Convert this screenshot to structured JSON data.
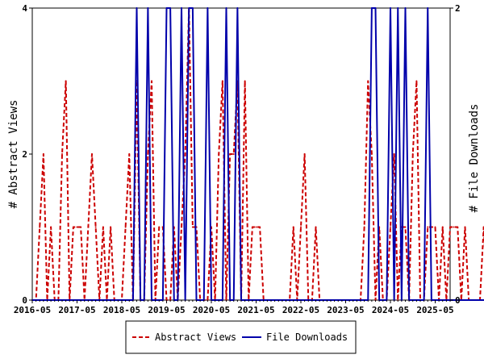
{
  "chart_data": {
    "type": "line",
    "y_left_label": "# Abstract Views",
    "y_right_label": "# File Downloads",
    "y_left_range": [
      0,
      4
    ],
    "y_right_range": [
      0,
      2
    ],
    "y_left_ticks": [
      0,
      2,
      4
    ],
    "y_right_ticks": [
      0,
      2
    ],
    "x_range": [
      "2016-05",
      "2025-09"
    ],
    "x_tick_labels": [
      "2016-05",
      "2017-05",
      "2018-05",
      "2019-05",
      "2020-05",
      "2021-05",
      "2022-05",
      "2023-05",
      "2024-05",
      "2025-05"
    ],
    "grid": false,
    "legend_position": "bottom",
    "series": [
      {
        "name": "Abstract Views",
        "axis": "left",
        "color": "#cc0000",
        "style": "dashed",
        "values": [
          0,
          0,
          1,
          2,
          0,
          1,
          0,
          0,
          2,
          3,
          0,
          1,
          1,
          1,
          0,
          1,
          2,
          1,
          0,
          1,
          0,
          1,
          0,
          0,
          0,
          1,
          2,
          0,
          3,
          0,
          0,
          2,
          3,
          0,
          1,
          1,
          0,
          0,
          1,
          0,
          1,
          2,
          4,
          1,
          1,
          0,
          0,
          0,
          1,
          0,
          2,
          3,
          0,
          2,
          2,
          3,
          0,
          3,
          0,
          1,
          1,
          1,
          0,
          0,
          0,
          0,
          0,
          0,
          0,
          0,
          1,
          0,
          1,
          2,
          0,
          0,
          1,
          0,
          0,
          0,
          0,
          0,
          0,
          0,
          0,
          0,
          0,
          0,
          0,
          1,
          3,
          2,
          0,
          1,
          0,
          0,
          1,
          2,
          0,
          1,
          1,
          0,
          2,
          3,
          0,
          0,
          1,
          1,
          1,
          0,
          1,
          0,
          1,
          1,
          1,
          0,
          1,
          0,
          0,
          0,
          0,
          1,
          0,
          0
        ]
      },
      {
        "name": "File Downloads",
        "axis": "right",
        "color": "#0000aa",
        "style": "solid",
        "values": [
          0,
          0,
          0,
          0,
          0,
          0,
          0,
          0,
          0,
          0,
          0,
          0,
          0,
          0,
          0,
          0,
          0,
          0,
          0,
          0,
          0,
          0,
          0,
          0,
          0,
          0,
          0,
          0,
          2,
          0,
          0,
          2,
          0,
          0,
          0,
          0,
          2,
          2,
          0,
          0,
          2,
          0,
          2,
          2,
          0,
          0,
          0,
          2,
          0,
          0,
          0,
          0,
          2,
          0,
          0,
          2,
          0,
          0,
          0,
          0,
          0,
          0,
          0,
          0,
          0,
          0,
          0,
          0,
          0,
          0,
          0,
          0,
          0,
          0,
          0,
          0,
          0,
          0,
          0,
          0,
          0,
          0,
          0,
          0,
          0,
          0,
          0,
          0,
          0,
          0,
          0,
          2,
          2,
          0,
          0,
          0,
          2,
          0,
          2,
          0,
          2,
          0,
          0,
          0,
          0,
          0,
          2,
          0,
          0,
          0,
          0,
          0,
          0,
          0,
          0,
          0,
          0,
          0,
          0,
          0,
          0,
          0,
          0,
          0
        ]
      }
    ]
  }
}
